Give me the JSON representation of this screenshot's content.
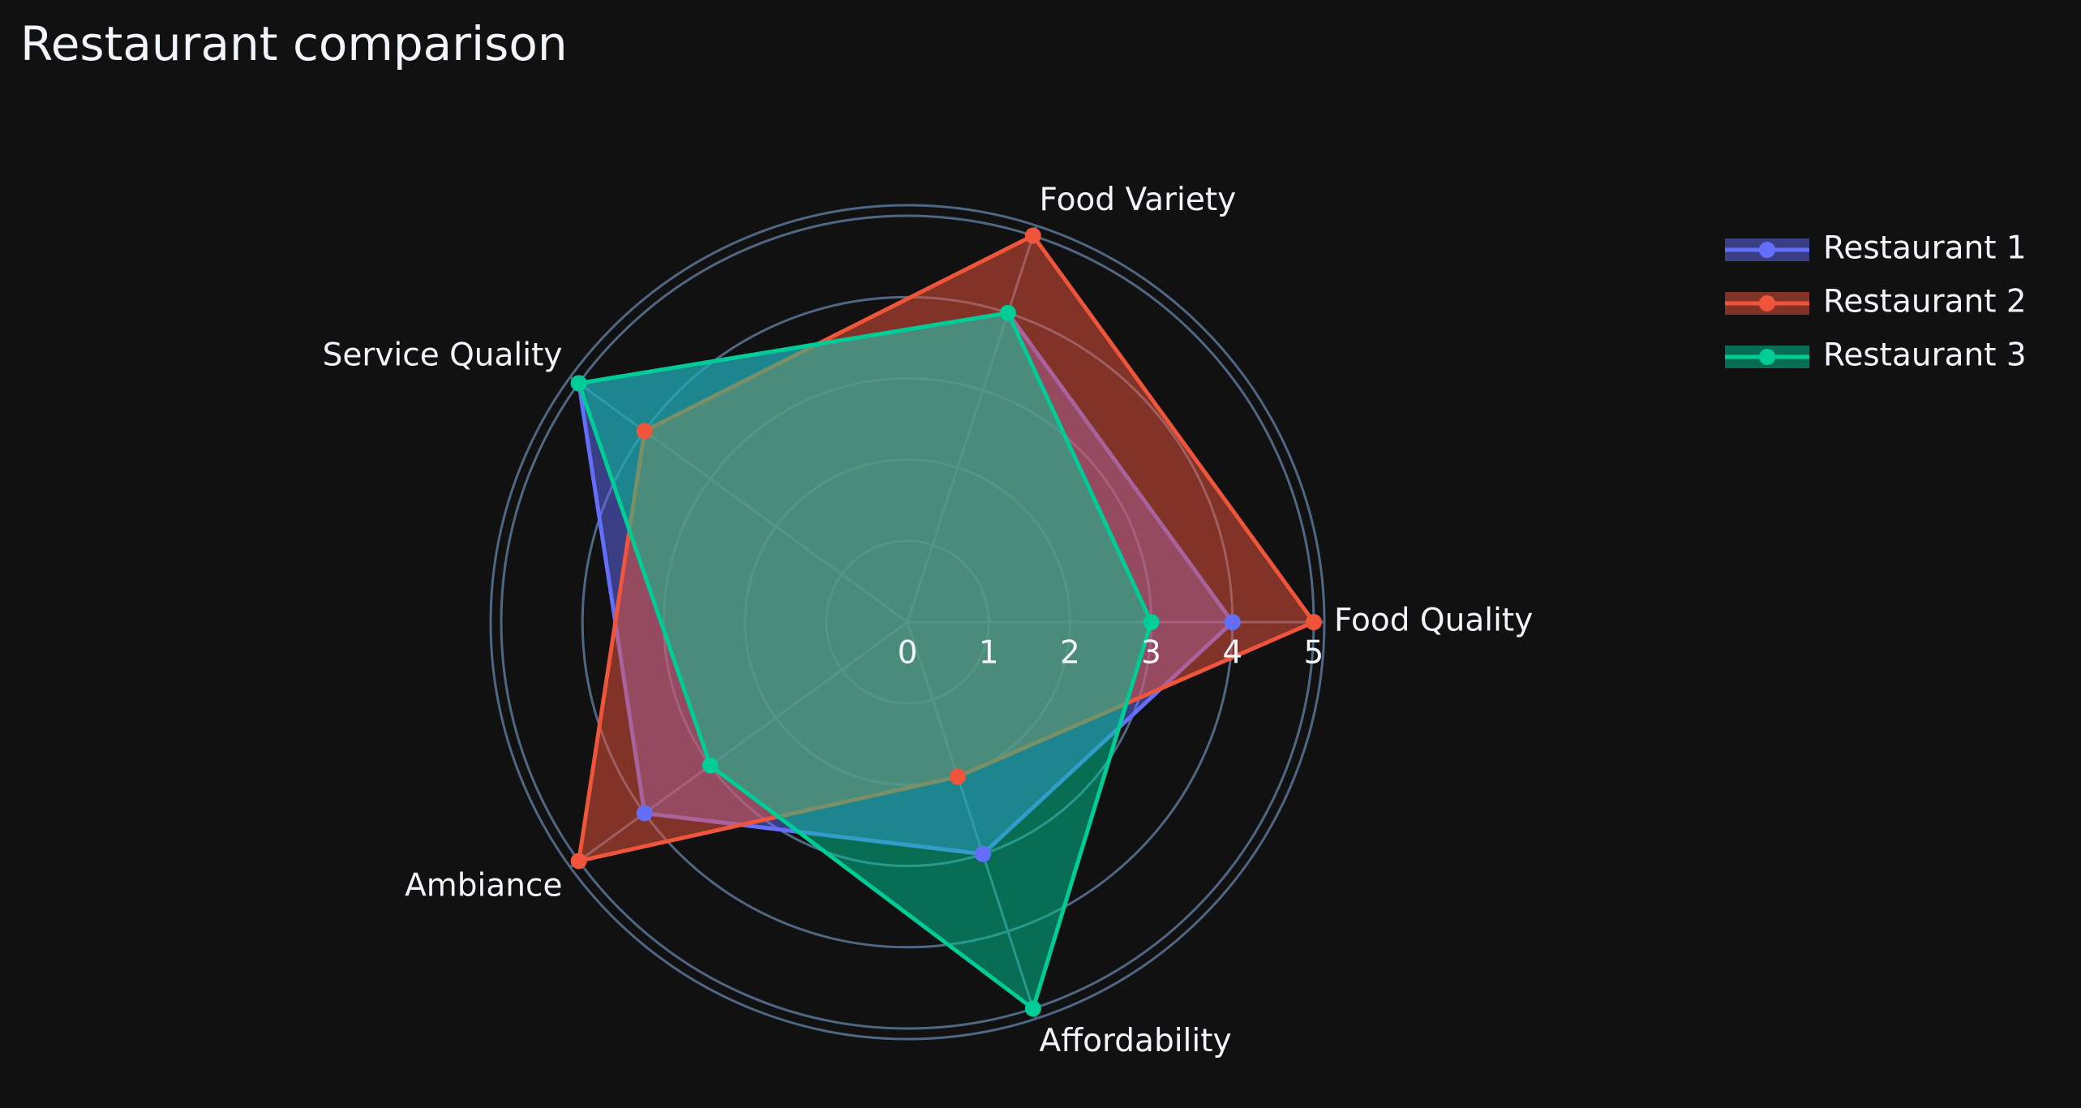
{
  "chart_data": {
    "type": "radar",
    "title": "Restaurant comparison",
    "categories": [
      "Food Quality",
      "Food Variety",
      "Service Quality",
      "Ambiance",
      "Affordability"
    ],
    "series": [
      {
        "name": "Restaurant 1",
        "color": "#636efa",
        "values": [
          4,
          4,
          5,
          4,
          3
        ]
      },
      {
        "name": "Restaurant 2",
        "color": "#EF553B",
        "values": [
          5,
          5,
          4,
          5,
          2
        ]
      },
      {
        "name": "Restaurant 3",
        "color": "#00cc96",
        "values": [
          3,
          4,
          5,
          3,
          5
        ]
      }
    ],
    "rlim": [
      0,
      5.13
    ],
    "rticks": [
      0,
      1,
      2,
      3,
      4,
      5
    ],
    "grid": true,
    "legend": "top-right"
  }
}
